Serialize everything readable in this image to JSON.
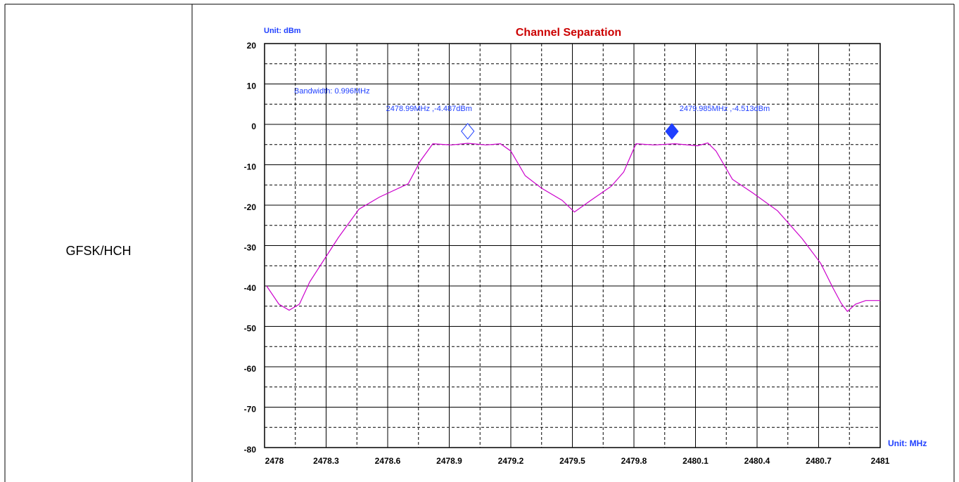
{
  "row_label": "GFSK/HCH",
  "chart_data": {
    "type": "line",
    "title": "Channel Separation",
    "y_label": "Unit: dBm",
    "x_label": "Unit: MHz",
    "annotation": "Bandwidth: 0.996MHz",
    "xlim": [
      2478,
      2481
    ],
    "xticks": [
      2478,
      2478.3,
      2478.6,
      2478.9,
      2479.2,
      2479.5,
      2479.8,
      2480.1,
      2480.4,
      2480.7,
      2481
    ],
    "ylim": [
      -80,
      20
    ],
    "yticks": [
      -80,
      -70,
      -60,
      -50,
      -40,
      -30,
      -20,
      -10,
      0,
      10,
      20
    ],
    "grid": true,
    "minor_grid": true,
    "series": [
      {
        "color": "#cc00cc",
        "x": [
          2478.01,
          2478.07,
          2478.12,
          2478.17,
          2478.22,
          2478.29,
          2478.36,
          2478.46,
          2478.56,
          2478.7,
          2478.76,
          2478.82,
          2478.91,
          2478.99,
          2479.08,
          2479.15,
          2479.2,
          2479.27,
          2479.35,
          2479.45,
          2479.51,
          2479.59,
          2479.69,
          2479.75,
          2479.81,
          2479.9,
          2480.0,
          2480.11,
          2480.16,
          2480.2,
          2480.28,
          2480.38,
          2480.5,
          2480.62,
          2480.71,
          2480.77,
          2480.81,
          2480.84,
          2480.88,
          2480.93,
          2481.0
        ],
        "values": [
          -40,
          -44.5,
          -46,
          -44.5,
          -39,
          -33.5,
          -28,
          -21,
          -18,
          -14.7,
          -9,
          -4.8,
          -5.1,
          -4.7,
          -5.1,
          -4.8,
          -6.6,
          -12.7,
          -15.8,
          -18.8,
          -21.7,
          -18.8,
          -15.3,
          -11.8,
          -4.8,
          -5.1,
          -4.8,
          -5.3,
          -4.6,
          -6.6,
          -13.6,
          -17,
          -21.4,
          -28.3,
          -34.4,
          -40.5,
          -44.3,
          -46.3,
          -44.5,
          -43.6,
          -43.6
        ]
      }
    ],
    "markers": [
      {
        "x": 2478.99,
        "y": -4.487,
        "label": "2478.99MHz ,-4.487dBm",
        "filled": false,
        "color": "#1f3fff"
      },
      {
        "x": 2479.985,
        "y": -4.513,
        "label": "2479.985MHz ,-4.513dBm",
        "filled": true,
        "color": "#1f3fff"
      }
    ]
  }
}
